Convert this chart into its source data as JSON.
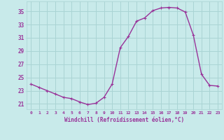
{
  "x": [
    0,
    1,
    2,
    3,
    4,
    5,
    6,
    7,
    8,
    9,
    10,
    11,
    12,
    13,
    14,
    15,
    16,
    17,
    18,
    19,
    20,
    21,
    22,
    23
  ],
  "y": [
    24.0,
    23.5,
    23.0,
    22.5,
    22.0,
    21.8,
    21.3,
    20.9,
    21.1,
    22.0,
    24.0,
    29.5,
    31.2,
    33.5,
    34.0,
    35.1,
    35.5,
    35.6,
    35.5,
    34.9,
    31.4,
    25.5,
    23.8,
    23.7
  ],
  "line_color": "#993399",
  "marker": "+",
  "bg_color": "#c8eaea",
  "grid_color": "#aad4d4",
  "xlabel": "Windchill (Refroidissement éolien,°C)",
  "xlabel_color": "#993399",
  "ylabel_ticks": [
    21,
    23,
    25,
    27,
    29,
    31,
    33,
    35
  ],
  "xlim": [
    -0.5,
    23.5
  ],
  "ylim": [
    20.2,
    36.5
  ],
  "tick_label_color": "#993399",
  "xtick_labels": [
    "0",
    "1",
    "2",
    "3",
    "4",
    "5",
    "6",
    "7",
    "8",
    "9",
    "10",
    "11",
    "12",
    "13",
    "14",
    "15",
    "16",
    "17",
    "18",
    "19",
    "20",
    "21",
    "22",
    "23"
  ],
  "line_width": 1.0,
  "marker_size": 3
}
